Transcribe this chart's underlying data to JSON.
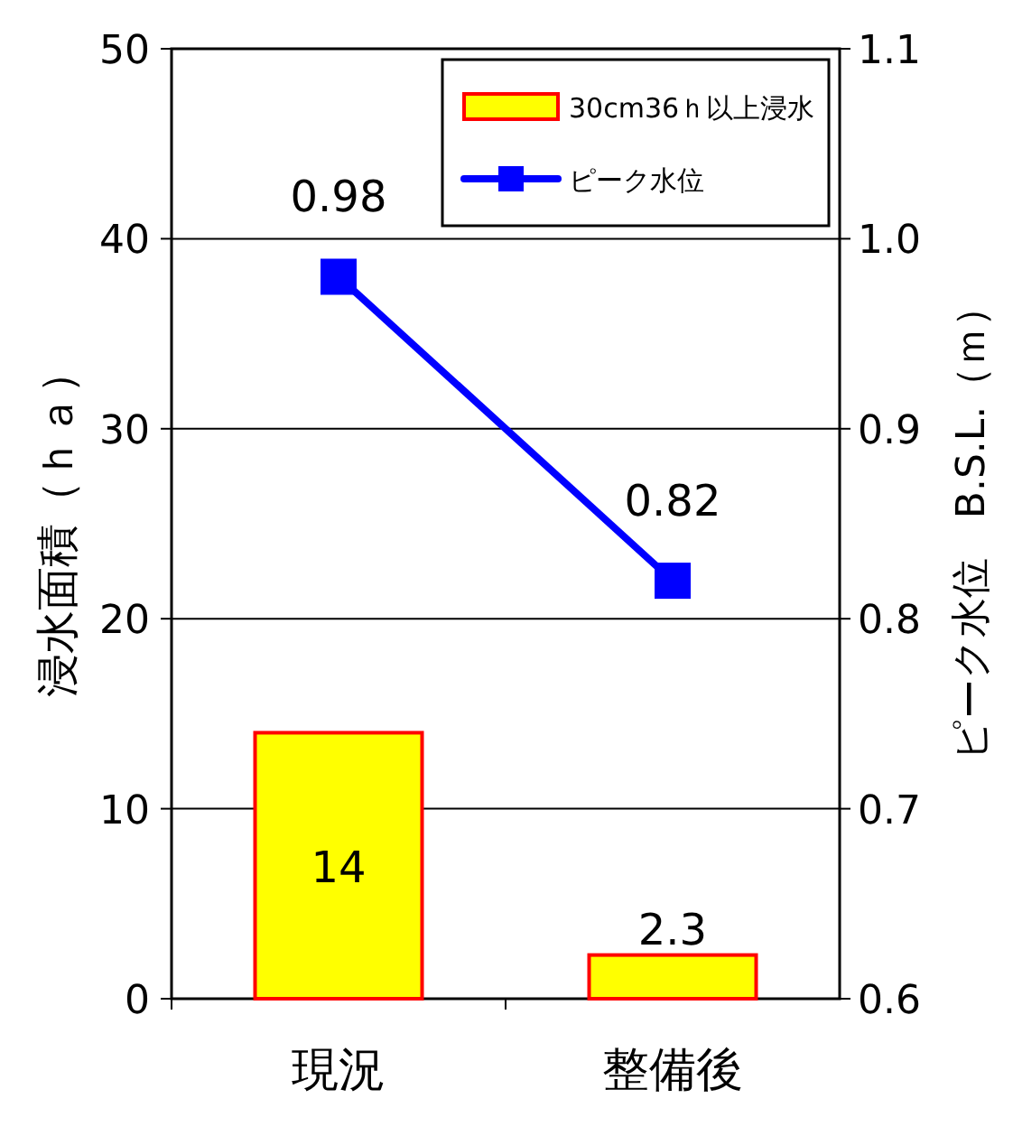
{
  "chart_data": {
    "type": "bar",
    "categories": [
      "現況",
      "整備後"
    ],
    "series": [
      {
        "name": "30cm36ｈ以上浸水",
        "color": "#ffff00",
        "values": [
          14,
          2.3
        ]
      },
      {
        "name": "ピーク水位",
        "type": "line",
        "axis": "y2",
        "color": "#0000ff",
        "values": [
          0.98,
          0.82
        ],
        "marker": "square"
      }
    ],
    "ylabel": "浸水面積（ｈａ）",
    "y2label": "ピーク水位　B.S.L.（ｍ）",
    "ylim": [
      0,
      50
    ],
    "yticks": [
      0,
      10,
      20,
      30,
      40,
      50
    ],
    "y2lim": [
      0.6,
      1.1
    ],
    "y2ticks": [
      0.6,
      0.7,
      0.8,
      0.9,
      {
        "value": 1,
        "label": "1.0"
      },
      1.1
    ],
    "grid": "y",
    "legend": "top right",
    "data_labels": true
  }
}
